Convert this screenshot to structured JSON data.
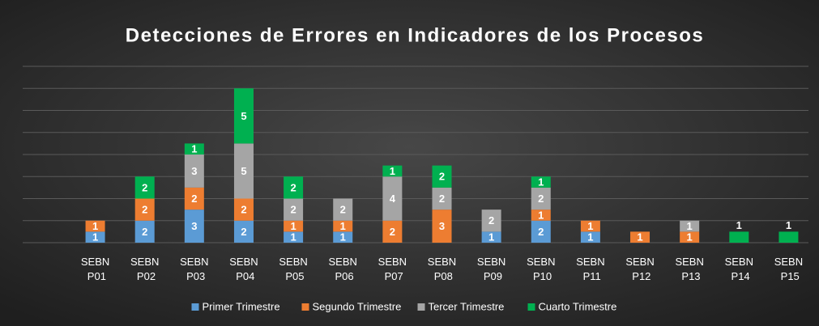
{
  "chart_data": {
    "type": "stacked_bar",
    "title": "Detecciones de Errores en Indicadores de los Procesos",
    "categories": [
      "SEBN P01",
      "SEBN P02",
      "SEBN P03",
      "SEBN P04",
      "SEBN P05",
      "SEBN P06",
      "SEBN P07",
      "SEBN P08",
      "SEBN P09",
      "SEBN P10",
      "SEBN P11",
      "SEBN P12",
      "SEBN P13",
      "SEBN P14",
      "SEBN P15"
    ],
    "series": [
      {
        "name": "Primer Trimestre",
        "color": "#5b9bd5",
        "values": [
          1,
          2,
          3,
          2,
          1,
          1,
          null,
          null,
          1,
          2,
          1,
          null,
          null,
          null,
          null
        ]
      },
      {
        "name": "Segundo Trimestre",
        "color": "#ed7d31",
        "values": [
          1,
          2,
          2,
          2,
          1,
          1,
          2,
          3,
          null,
          1,
          1,
          1,
          1,
          null,
          null
        ]
      },
      {
        "name": "Tercer Trimestre",
        "color": "#a5a5a5",
        "values": [
          null,
          null,
          3,
          5,
          2,
          2,
          4,
          2,
          2,
          2,
          null,
          null,
          1,
          null,
          null
        ]
      },
      {
        "name": "Cuarto Trimestre",
        "color": "#00b050",
        "values": [
          null,
          2,
          1,
          5,
          2,
          null,
          1,
          2,
          null,
          1,
          null,
          null,
          null,
          1,
          1
        ]
      }
    ],
    "ylim": [
      0,
      16
    ],
    "yticks": [
      0,
      2,
      4,
      6,
      8,
      10,
      12,
      14,
      16
    ],
    "grid": true,
    "legend": "bottom"
  }
}
